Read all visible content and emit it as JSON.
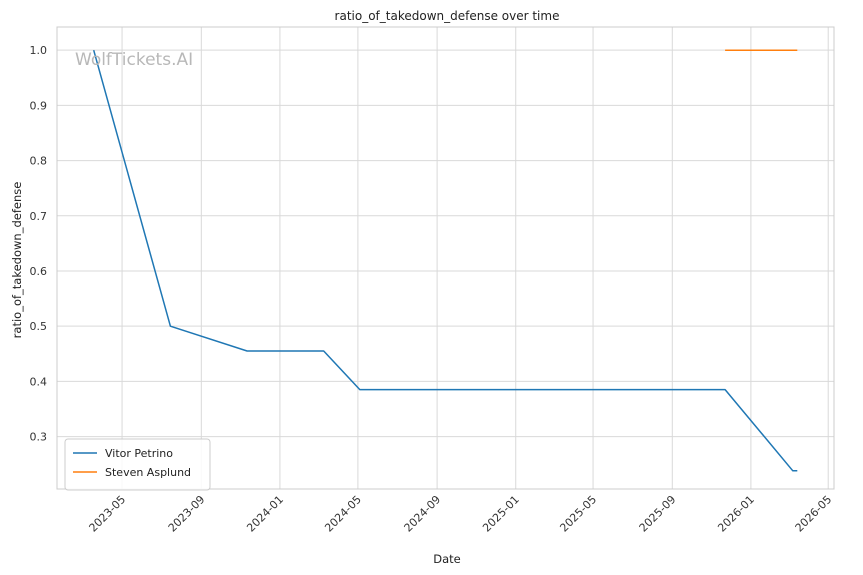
{
  "chart_data": {
    "type": "line",
    "title": "ratio_of_takedown_defense over time",
    "xlabel": "Date",
    "ylabel": "ratio_of_takedown_defense",
    "watermark": "WolfTickets.AI",
    "x_ticks": [
      "2023-05",
      "2023-09",
      "2024-01",
      "2024-05",
      "2024-09",
      "2025-01",
      "2025-05",
      "2025-09",
      "2026-01",
      "2026-05"
    ],
    "y_ticks": [
      0.3,
      0.4,
      0.5,
      0.6,
      0.7,
      0.8,
      0.9,
      1.0
    ],
    "y_tick_labels": [
      "0.3",
      "0.4",
      "0.5",
      "0.6",
      "0.7",
      "0.8",
      "0.9",
      "1.0"
    ],
    "xlim": [
      "2023-01-20",
      "2026-05-10"
    ],
    "ylim": [
      0.205,
      1.042
    ],
    "grid": true,
    "legend_position": "bottom-left",
    "series": [
      {
        "name": "Vitor Petrino",
        "color": "#1f77b4",
        "points": [
          {
            "x": "2023-03-18",
            "y": 1.0
          },
          {
            "x": "2023-07-15",
            "y": 0.5
          },
          {
            "x": "2023-11-11",
            "y": 0.455
          },
          {
            "x": "2024-03-09",
            "y": 0.455
          },
          {
            "x": "2024-05-04",
            "y": 0.385
          },
          {
            "x": "2025-11-22",
            "y": 0.385
          },
          {
            "x": "2026-03-07",
            "y": 0.238
          },
          {
            "x": "2026-03-14",
            "y": 0.238
          }
        ]
      },
      {
        "name": "Steven Asplund",
        "color": "#ff7f0e",
        "points": [
          {
            "x": "2025-11-22",
            "y": 1.0
          },
          {
            "x": "2026-03-14",
            "y": 1.0
          }
        ]
      }
    ]
  }
}
